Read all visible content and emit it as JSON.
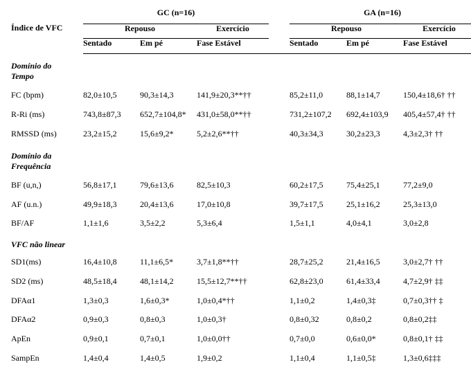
{
  "meta": {
    "index_header": "Índice de VFC",
    "groups": {
      "gc": "GC (n=16)",
      "ga": "GA (n=16)"
    },
    "phases": {
      "repouso": "Repouso",
      "exercicio": "Exercício"
    },
    "conditions": {
      "sentado": "Sentado",
      "em_pe": "Em pé",
      "fase_estavel": "Fase Estável"
    }
  },
  "sections": {
    "tempo": "Domínio do",
    "tempo2": "Tempo",
    "freq": "Domínio da",
    "freq2": "Frequência",
    "nlin": "VFC não linear"
  },
  "rows": {
    "fc": {
      "label": "FC (bpm)",
      "gc_s": "82,0±10,5",
      "gc_p": "90,3±14,3",
      "gc_e": "141,9±20,3**††",
      "ga_s": "85,2±11,0",
      "ga_p": "88,1±14,7",
      "ga_e": "150,4±18,6† ††"
    },
    "rri": {
      "label": "R-Ri (ms)",
      "gc_s": "743,8±87,3",
      "gc_p": "652,7±104,8*",
      "gc_e": "431,0±58,0**††",
      "ga_s": "731,2±107,2",
      "ga_p": "692,4±103,9",
      "ga_e": "405,4±57,4† ††"
    },
    "rmssd": {
      "label": "RMSSD (ms)",
      "gc_s": "23,2±15,2",
      "gc_p": "15,6±9,2*",
      "gc_e": "5,2±2,6**††",
      "ga_s": "40,3±34,3",
      "ga_p": "30,2±23,3",
      "ga_e": "4,3±2,3† ††"
    },
    "bf": {
      "label": "BF (u,n,)",
      "gc_s": "56,8±17,1",
      "gc_p": "79,6±13,6",
      "gc_e": "82,5±10,3",
      "ga_s": "60,2±17,5",
      "ga_p": "75,4±25,1",
      "ga_e": "77,2±9,0"
    },
    "af": {
      "label": "AF (u.n.)",
      "gc_s": "49,9±18,3",
      "gc_p": "20,4±13,6",
      "gc_e": "17,0±10,8",
      "ga_s": "39,7±17,5",
      "ga_p": "25,1±16,2",
      "ga_e": "25,3±13,0"
    },
    "bfaf": {
      "label": "BF/AF",
      "gc_s": "1,1±1,6",
      "gc_p": "3,5±2,2",
      "gc_e": "5,3±6,4",
      "ga_s": "1,5±1,1",
      "ga_p": "4,0±4,1",
      "ga_e": "3,0±2,8"
    },
    "sd1": {
      "label": "SD1(ms)",
      "gc_s": "16,4±10,8",
      "gc_p": "11,1±6,5*",
      "gc_e": "3,7±1,8**††",
      "ga_s": "28,7±25,2",
      "ga_p": "21,4±16,5",
      "ga_e": "3,0±2,7† ††"
    },
    "sd2": {
      "label": "SD2 (ms)",
      "gc_s": "48,5±18,4",
      "gc_p": "48,1±14,2",
      "gc_e": "15,5±12,7**††",
      "ga_s": "62,8±23,0",
      "ga_p": "61,4±33,4",
      "ga_e": "4,7±2,9† ‡‡"
    },
    "dfa1": {
      "label": "DFAα1",
      "gc_s": "1,3±0,3",
      "gc_p": "1,6±0,3*",
      "gc_e": "1,0±0,4*††",
      "ga_s": "1,1±0,2",
      "ga_p": "1,4±0,3‡",
      "ga_e": "0,7±0,3†† ‡"
    },
    "dfa2": {
      "label": "DFAα2",
      "gc_s": "0,9±0,3",
      "gc_p": "0,8±0,3",
      "gc_e": "1,0±0,3†",
      "ga_s": "0,8±0,32",
      "ga_p": "0,8±0,2",
      "ga_e": "0,8±0,2‡‡"
    },
    "apen": {
      "label": "ApEn",
      "gc_s": "0,9±0,1",
      "gc_p": "0,7±0,1",
      "gc_e": "1,0±0,0††",
      "ga_s": "0,7±0,0",
      "ga_p": "0,6±0,0*",
      "ga_e": "0,8±0,1† ‡‡"
    },
    "sampen": {
      "label": "SampEn",
      "gc_s": "1,4±0,4",
      "gc_p": "1,4±0,5",
      "gc_e": "1,9±0,2",
      "ga_s": "1,1±0,4",
      "ga_p": "1,1±0,5‡",
      "ga_e": "1,3±0,6‡‡‡"
    }
  },
  "style": {
    "font_family": "Times New Roman",
    "font_size_pt": 9,
    "text_color": "#000000",
    "background_color": "#ffffff",
    "rule_color": "#000000"
  }
}
